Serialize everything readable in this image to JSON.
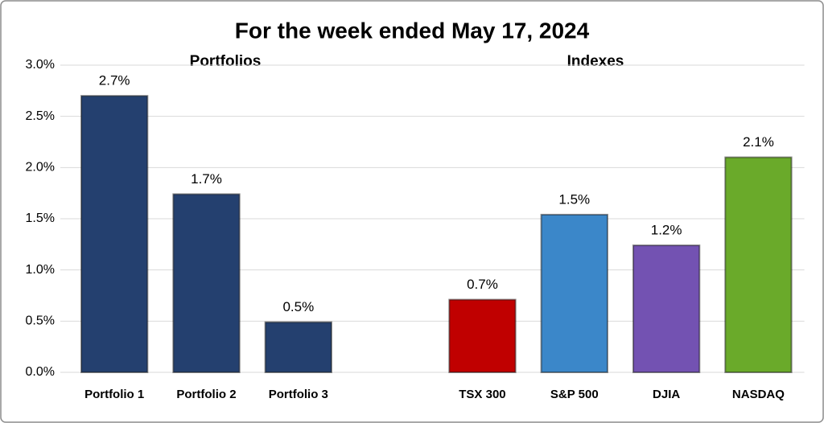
{
  "chart_data": {
    "type": "bar",
    "title": "For the week ended May 17, 2024",
    "annotations": [
      "Portfolios",
      "Indexes"
    ],
    "categories": [
      "Portfolio 1",
      "Portfolio 2",
      "Portfolio 3",
      null,
      "TSX 300",
      "S&P 500",
      "DJIA",
      "NASDAQ"
    ],
    "values": [
      2.7,
      1.74,
      0.49,
      null,
      0.71,
      1.54,
      1.24,
      2.1
    ],
    "value_labels": [
      "2.7%",
      "1.7%",
      "0.5%",
      null,
      "0.7%",
      "1.5%",
      "1.2%",
      "2.1%"
    ],
    "colors": [
      "#24406f",
      "#24406f",
      "#24406f",
      null,
      "#c00000",
      "#3b87c9",
      "#7352b2",
      "#6aaa2a"
    ],
    "ylim": [
      0,
      3
    ],
    "yticks": [
      {
        "value": 0,
        "label": "0.0%"
      },
      {
        "value": 0.5,
        "label": "0.5%"
      },
      {
        "value": 1,
        "label": "1.0%"
      },
      {
        "value": 1.5,
        "label": "1.5%"
      },
      {
        "value": 2,
        "label": "2.0%"
      },
      {
        "value": 2.5,
        "label": "2.5%"
      },
      {
        "value": 3,
        "label": "3.0%"
      }
    ],
    "grid": true
  }
}
